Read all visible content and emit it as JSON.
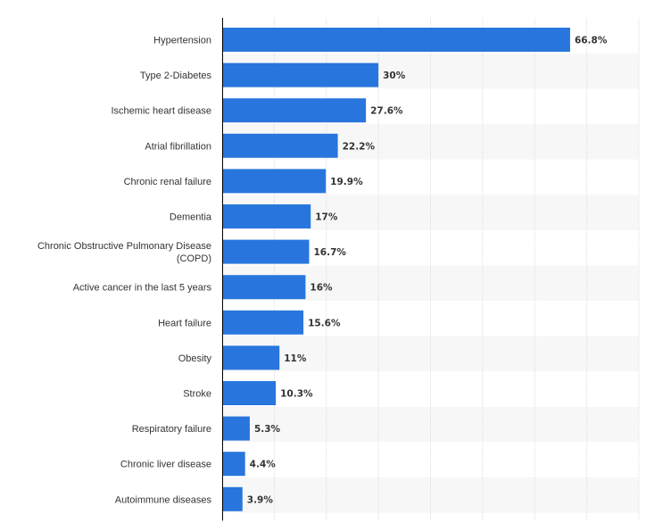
{
  "chart_data": {
    "type": "bar",
    "orientation": "horizontal",
    "categories": [
      [
        "Hypertension"
      ],
      [
        "Type 2-Diabetes"
      ],
      [
        "Ischemic heart disease"
      ],
      [
        "Atrial fibrillation"
      ],
      [
        "Chronic renal failure"
      ],
      [
        "Dementia"
      ],
      [
        "Chronic Obstructive Pulmonary Disease",
        "(COPD)"
      ],
      [
        "Active cancer in the last 5 years"
      ],
      [
        "Heart failure"
      ],
      [
        "Obesity"
      ],
      [
        "Stroke"
      ],
      [
        "Respiratory failure"
      ],
      [
        "Chronic liver disease"
      ],
      [
        "Autoimmune diseases"
      ]
    ],
    "values": [
      66.8,
      30,
      27.6,
      22.2,
      19.9,
      17,
      16.7,
      16,
      15.6,
      11,
      10.3,
      5.3,
      4.4,
      3.9
    ],
    "value_labels": [
      "66.8%",
      "30%",
      "27.6%",
      "22.2%",
      "19.9%",
      "17%",
      "16.7%",
      "16%",
      "15.6%",
      "11%",
      "10.3%",
      "5.3%",
      "4.4%",
      "3.9%"
    ],
    "xlim": [
      0,
      80
    ],
    "grid": true,
    "bar_color": "#2876dd",
    "band_color": "#f7f7f7",
    "grid_color": "#dddddd",
    "axis_color": "#000000",
    "title": "",
    "xlabel": "",
    "ylabel": ""
  }
}
